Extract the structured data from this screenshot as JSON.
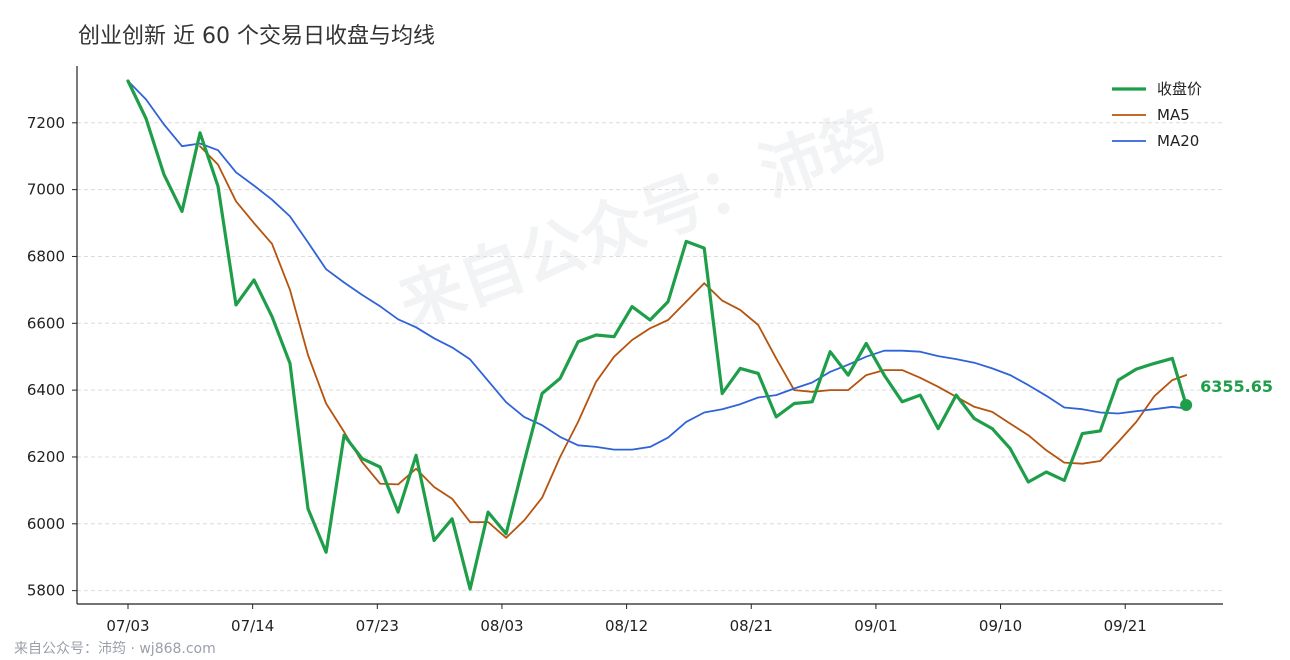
{
  "title": "创业创新 近 60 个交易日收盘与均线",
  "watermark": "来自公众号：沛筠",
  "footer": "来自公众号：沛筠 · wj868.com",
  "colors": {
    "close": "#1f9e4a",
    "ma5": "#b5540e",
    "ma20": "#2f63d8",
    "grid": "#dcdcdc",
    "axis": "#222222"
  },
  "chart_data": {
    "type": "line",
    "title": "创业创新 近 60 个交易日收盘与均线",
    "x_tick_labels": [
      "07/03",
      "07/14",
      "07/23",
      "08/03",
      "08/12",
      "08/21",
      "09/01",
      "09/10",
      "09/21"
    ],
    "x_tick_indices": [
      0,
      9,
      18,
      27,
      36,
      45,
      54,
      63,
      72
    ],
    "y_ticks": [
      5800,
      6000,
      6200,
      6400,
      6600,
      6800,
      7000,
      7200
    ],
    "ylim": [
      5760,
      7370
    ],
    "grid": "horizontal",
    "legend_position": "top-right",
    "legend": [
      "收盘价",
      "MA5",
      "MA20"
    ],
    "last_value_label": "6355.65",
    "series": [
      {
        "name": "收盘价",
        "x": [
          0,
          1.3,
          2.6,
          3.9,
          5.2,
          6.5,
          7.8,
          9.1,
          10.4,
          11.7,
          13,
          14.3,
          15.6,
          16.9,
          18.2,
          19.5,
          20.8,
          22.1,
          23.4,
          24.7,
          26,
          27.3,
          28.6,
          29.9,
          31.2,
          32.5,
          33.8,
          35.1,
          36.4,
          37.7,
          39,
          40.3,
          41.6,
          42.9,
          44.2,
          45.5,
          46.8,
          48.1,
          49.4,
          50.7,
          52,
          53.3,
          54.6,
          55.9,
          57.2,
          58.5,
          59.8,
          61.1,
          62.4,
          63.7,
          65,
          66.3,
          67.6,
          68.9,
          70.2,
          71.5,
          72.8,
          74.1,
          75.4,
          76.4
        ],
        "values": [
          7325,
          7213,
          7045,
          6935,
          7170,
          7010,
          6655,
          6730,
          6620,
          6480,
          6045,
          5915,
          6265,
          6195,
          6170,
          6035,
          6205,
          5950,
          6015,
          5805,
          6035,
          5970,
          6185,
          6390,
          6435,
          6545,
          6565,
          6560,
          6650,
          6610,
          6665,
          6845,
          6825,
          6390,
          6465,
          6450,
          6320,
          6360,
          6365,
          6515,
          6445,
          6540,
          6445,
          6365,
          6385,
          6285,
          6385,
          6315,
          6285,
          6225,
          6125,
          6155,
          6130,
          6270,
          6278,
          6430,
          6463,
          6480,
          6495,
          6355.65
        ]
      },
      {
        "name": "MA5",
        "x": [
          5.2,
          6.5,
          7.8,
          9.1,
          10.4,
          11.7,
          13,
          14.3,
          15.6,
          16.9,
          18.2,
          19.5,
          20.8,
          22.1,
          23.4,
          24.7,
          26,
          27.3,
          28.6,
          29.9,
          31.2,
          32.5,
          33.8,
          35.1,
          36.4,
          37.7,
          39,
          40.3,
          41.6,
          42.9,
          44.2,
          45.5,
          46.8,
          48.1,
          49.4,
          50.7,
          52,
          53.3,
          54.6,
          55.9,
          57.2,
          58.5,
          59.8,
          61.1,
          62.4,
          63.7,
          65,
          66.3,
          67.6,
          68.9,
          70.2,
          71.5,
          72.8,
          74.1,
          75.4,
          76.4
        ],
        "values": [
          7130,
          7075,
          6965,
          6900,
          6838,
          6700,
          6505,
          6360,
          6275,
          6185,
          6120,
          6118,
          6165,
          6110,
          6075,
          6005,
          6005,
          5958,
          6010,
          6078,
          6200,
          6305,
          6425,
          6500,
          6550,
          6585,
          6610,
          6665,
          6720,
          6668,
          6640,
          6595,
          6495,
          6400,
          6395,
          6400,
          6400,
          6445,
          6460,
          6460,
          6437,
          6410,
          6380,
          6350,
          6335,
          6300,
          6265,
          6220,
          6183,
          6180,
          6188,
          6245,
          6305,
          6382,
          6430,
          6445
        ]
      },
      {
        "name": "MA20",
        "x": [
          0,
          1.3,
          2.6,
          3.9,
          5.2,
          6.5,
          7.8,
          9.1,
          10.4,
          11.7,
          13,
          14.3,
          15.6,
          16.9,
          18.2,
          19.5,
          20.8,
          22.1,
          23.4,
          24.7,
          26,
          27.3,
          28.6,
          29.9,
          31.2,
          32.5,
          33.8,
          35.1,
          36.4,
          37.7,
          39,
          40.3,
          41.6,
          42.9,
          44.2,
          45.5,
          46.8,
          48.1,
          49.4,
          50.7,
          52,
          53.3,
          54.6,
          55.9,
          57.2,
          58.5,
          59.8,
          61.1,
          62.4,
          63.7,
          65,
          66.3,
          67.6,
          68.9,
          70.2,
          71.5,
          72.8,
          74.1,
          75.4,
          76.4
        ],
        "values": [
          7325,
          7270,
          7195,
          7130,
          7138,
          7118,
          7052,
          7012,
          6970,
          6920,
          6842,
          6762,
          6722,
          6685,
          6651,
          6612,
          6588,
          6555,
          6528,
          6492,
          6428,
          6364,
          6320,
          6295,
          6260,
          6235,
          6230,
          6222,
          6222,
          6230,
          6258,
          6305,
          6333,
          6343,
          6358,
          6378,
          6385,
          6405,
          6423,
          6455,
          6476,
          6500,
          6518,
          6518,
          6515,
          6502,
          6493,
          6482,
          6465,
          6445,
          6415,
          6383,
          6348,
          6343,
          6333,
          6330,
          6337,
          6343,
          6350,
          6345
        ]
      }
    ]
  }
}
